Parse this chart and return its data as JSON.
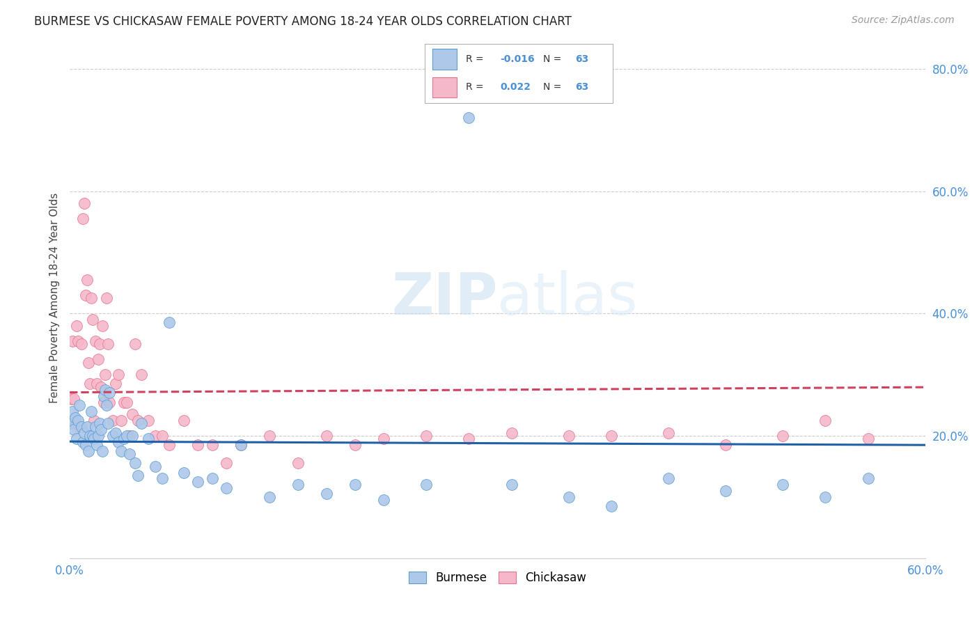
{
  "title": "BURMESE VS CHICKASAW FEMALE POVERTY AMONG 18-24 YEAR OLDS CORRELATION CHART",
  "source": "Source: ZipAtlas.com",
  "ylabel": "Female Poverty Among 18-24 Year Olds",
  "xlim": [
    0.0,
    0.6
  ],
  "ylim": [
    0.0,
    0.85
  ],
  "burmese_color": "#adc8e8",
  "chickasaw_color": "#f5b8ca",
  "burmese_edge_color": "#5b9bd5",
  "chickasaw_edge_color": "#e8728a",
  "burmese_line_color": "#2060a8",
  "chickasaw_line_color": "#d04060",
  "watermark_zip": "ZIP",
  "watermark_atlas": "atlas",
  "legend_R_burmese": "-0.016",
  "legend_R_chickasaw": "0.022",
  "legend_N": "63",
  "burmese_R": -0.016,
  "chickasaw_R": 0.022,
  "burmese_x": [
    0.001,
    0.002,
    0.003,
    0.004,
    0.005,
    0.006,
    0.007,
    0.008,
    0.009,
    0.01,
    0.011,
    0.012,
    0.013,
    0.014,
    0.015,
    0.016,
    0.017,
    0.018,
    0.019,
    0.02,
    0.021,
    0.022,
    0.023,
    0.024,
    0.025,
    0.026,
    0.027,
    0.028,
    0.03,
    0.032,
    0.034,
    0.036,
    0.038,
    0.04,
    0.042,
    0.044,
    0.046,
    0.048,
    0.05,
    0.055,
    0.06,
    0.065,
    0.07,
    0.08,
    0.09,
    0.1,
    0.11,
    0.12,
    0.14,
    0.16,
    0.18,
    0.2,
    0.22,
    0.25,
    0.28,
    0.31,
    0.35,
    0.38,
    0.42,
    0.46,
    0.5,
    0.53,
    0.56
  ],
  "burmese_y": [
    0.22,
    0.24,
    0.21,
    0.23,
    0.195,
    0.225,
    0.25,
    0.215,
    0.19,
    0.205,
    0.185,
    0.215,
    0.175,
    0.2,
    0.24,
    0.2,
    0.195,
    0.215,
    0.185,
    0.2,
    0.22,
    0.21,
    0.175,
    0.265,
    0.275,
    0.25,
    0.22,
    0.27,
    0.2,
    0.205,
    0.19,
    0.175,
    0.195,
    0.2,
    0.17,
    0.2,
    0.155,
    0.135,
    0.22,
    0.195,
    0.15,
    0.13,
    0.385,
    0.14,
    0.125,
    0.13,
    0.115,
    0.185,
    0.1,
    0.12,
    0.105,
    0.12,
    0.095,
    0.12,
    0.72,
    0.12,
    0.1,
    0.085,
    0.13,
    0.11,
    0.12,
    0.1,
    0.13
  ],
  "chickasaw_x": [
    0.001,
    0.002,
    0.003,
    0.004,
    0.005,
    0.006,
    0.007,
    0.008,
    0.009,
    0.01,
    0.011,
    0.012,
    0.013,
    0.014,
    0.015,
    0.016,
    0.017,
    0.018,
    0.019,
    0.02,
    0.021,
    0.022,
    0.023,
    0.024,
    0.025,
    0.026,
    0.027,
    0.028,
    0.03,
    0.032,
    0.034,
    0.036,
    0.038,
    0.04,
    0.042,
    0.044,
    0.046,
    0.048,
    0.05,
    0.055,
    0.06,
    0.065,
    0.07,
    0.08,
    0.09,
    0.1,
    0.11,
    0.12,
    0.14,
    0.16,
    0.18,
    0.2,
    0.22,
    0.25,
    0.28,
    0.31,
    0.35,
    0.38,
    0.42,
    0.46,
    0.5,
    0.53,
    0.56
  ],
  "chickasaw_y": [
    0.26,
    0.355,
    0.26,
    0.22,
    0.38,
    0.355,
    0.215,
    0.35,
    0.555,
    0.58,
    0.43,
    0.455,
    0.32,
    0.285,
    0.425,
    0.39,
    0.225,
    0.355,
    0.285,
    0.325,
    0.35,
    0.28,
    0.38,
    0.255,
    0.3,
    0.425,
    0.35,
    0.255,
    0.225,
    0.285,
    0.3,
    0.225,
    0.255,
    0.255,
    0.2,
    0.235,
    0.35,
    0.225,
    0.3,
    0.225,
    0.2,
    0.2,
    0.185,
    0.225,
    0.185,
    0.185,
    0.155,
    0.185,
    0.2,
    0.155,
    0.2,
    0.185,
    0.195,
    0.2,
    0.195,
    0.205,
    0.2,
    0.2,
    0.205,
    0.185,
    0.2,
    0.225,
    0.195
  ],
  "figsize": [
    14.06,
    8.92
  ],
  "dpi": 100
}
